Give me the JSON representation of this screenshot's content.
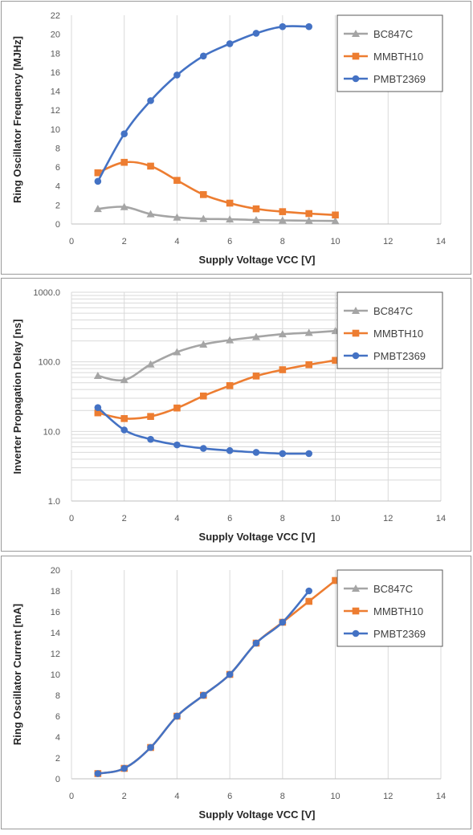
{
  "chart_data": [
    {
      "type": "line",
      "ylabel": "Ring Oscillator Frequency [MJHz]",
      "xlabel": "Supply Voltage VCC [V]",
      "xlim": [
        0,
        14
      ],
      "ylim": [
        0,
        22
      ],
      "log_y": false,
      "xticks": [
        0,
        2,
        4,
        6,
        8,
        10,
        12,
        14
      ],
      "xtick_labels": [
        "0",
        "2",
        "4",
        "6",
        "8",
        "10",
        "12",
        "14"
      ],
      "yticks": [
        0,
        2,
        4,
        6,
        8,
        10,
        12,
        14,
        16,
        18,
        20,
        22
      ],
      "ytick_labels": [
        "0",
        "2",
        "4",
        "6",
        "8",
        "10",
        "12",
        "14",
        "16",
        "18",
        "20",
        "22"
      ],
      "grid": "vertical",
      "legend": "top-right",
      "series": [
        {
          "name": "BC847C",
          "color": "#a5a5a5",
          "marker": "triangle",
          "x": [
            1,
            2,
            3,
            4,
            5,
            6,
            7,
            8,
            9,
            10
          ],
          "y": [
            1.6,
            1.8,
            1.05,
            0.7,
            0.55,
            0.5,
            0.42,
            0.38,
            0.35,
            0.32
          ]
        },
        {
          "name": "MMBTH10",
          "color": "#ed7d31",
          "marker": "square",
          "x": [
            1,
            2,
            3,
            4,
            5,
            6,
            7,
            8,
            9,
            10
          ],
          "y": [
            5.4,
            6.5,
            6.1,
            4.6,
            3.1,
            2.2,
            1.6,
            1.3,
            1.1,
            0.95
          ]
        },
        {
          "name": "PMBT2369",
          "color": "#4472c4",
          "marker": "circle",
          "x": [
            1,
            2,
            3,
            4,
            5,
            6,
            7,
            8,
            9
          ],
          "y": [
            4.5,
            9.5,
            13.0,
            15.7,
            17.7,
            19.0,
            20.1,
            20.8,
            20.8
          ]
        }
      ]
    },
    {
      "type": "line",
      "ylabel": "Inverter Propagation Delay [ns]",
      "xlabel": "Supply Voltage VCC [V]",
      "xlim": [
        0,
        14
      ],
      "ylim": [
        1,
        1000
      ],
      "log_y": true,
      "xticks": [
        0,
        2,
        4,
        6,
        8,
        10,
        12,
        14
      ],
      "xtick_labels": [
        "0",
        "2",
        "4",
        "6",
        "8",
        "10",
        "12",
        "14"
      ],
      "yticks": [
        1,
        10,
        100,
        1000
      ],
      "ytick_labels": [
        "1.0",
        "10.0",
        "100.0",
        "1000.0"
      ],
      "grid": "vertical+log-minor",
      "legend": "top-right",
      "series": [
        {
          "name": "BC847C",
          "color": "#a5a5a5",
          "marker": "triangle",
          "x": [
            1,
            2,
            3,
            4,
            5,
            6,
            7,
            8,
            9,
            10
          ],
          "y": [
            63,
            55,
            92,
            138,
            178,
            205,
            228,
            250,
            262,
            278
          ]
        },
        {
          "name": "MMBTH10",
          "color": "#ed7d31",
          "marker": "square",
          "x": [
            1,
            2,
            3,
            4,
            5,
            6,
            7,
            8,
            9,
            10
          ],
          "y": [
            18.5,
            15.3,
            16.4,
            21.7,
            32.3,
            45.5,
            62.5,
            77,
            91,
            105
          ]
        },
        {
          "name": "PMBT2369",
          "color": "#4472c4",
          "marker": "circle",
          "x": [
            1,
            2,
            3,
            4,
            5,
            6,
            7,
            8,
            9
          ],
          "y": [
            22,
            10.5,
            7.7,
            6.4,
            5.7,
            5.3,
            5.0,
            4.8,
            4.8
          ]
        }
      ]
    },
    {
      "type": "line",
      "ylabel": "Ring Oscillator Current [mA]",
      "xlabel": "Supply Voltage VCC [V]",
      "xlim": [
        0,
        14
      ],
      "ylim": [
        0,
        20
      ],
      "log_y": false,
      "xticks": [
        0,
        2,
        4,
        6,
        8,
        10,
        12,
        14
      ],
      "xtick_labels": [
        "0",
        "2",
        "4",
        "6",
        "8",
        "10",
        "12",
        "14"
      ],
      "yticks": [
        0,
        2,
        4,
        6,
        8,
        10,
        12,
        14,
        16,
        18,
        20
      ],
      "ytick_labels": [
        "0",
        "2",
        "4",
        "6",
        "8",
        "10",
        "12",
        "14",
        "16",
        "18",
        "20"
      ],
      "grid": "vertical",
      "legend": "top-right",
      "series": [
        {
          "name": "BC847C",
          "color": "#a5a5a5",
          "marker": "triangle",
          "x": [],
          "y": []
        },
        {
          "name": "MMBTH10",
          "color": "#ed7d31",
          "marker": "square",
          "x": [
            1,
            2,
            3,
            4,
            5,
            6,
            7,
            8,
            9,
            10
          ],
          "y": [
            0.5,
            1.0,
            3.0,
            6.0,
            8.0,
            10.0,
            13.0,
            15.0,
            17.0,
            19.0
          ]
        },
        {
          "name": "PMBT2369",
          "color": "#4472c4",
          "marker": "circle",
          "x": [
            1,
            2,
            3,
            4,
            5,
            6,
            7,
            8,
            9
          ],
          "y": [
            0.5,
            1.0,
            3.0,
            6.0,
            8.0,
            10.0,
            13.0,
            15.0,
            18.0
          ]
        }
      ]
    }
  ]
}
